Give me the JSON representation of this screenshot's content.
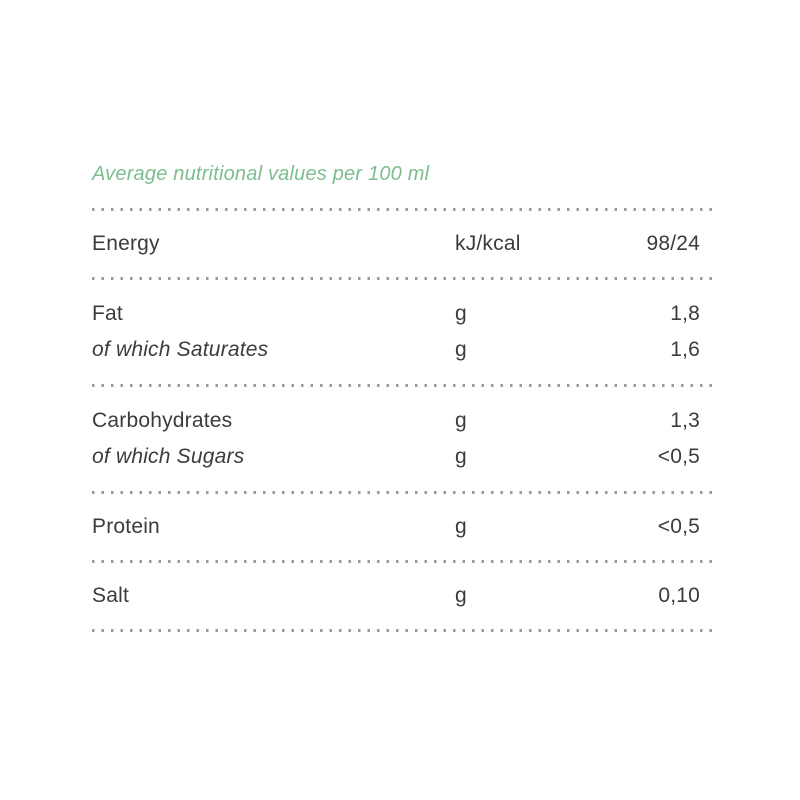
{
  "title": "Average nutritional values per 100 ml",
  "table": {
    "groups": [
      {
        "rows": [
          {
            "label": "Energy",
            "style": "regular",
            "unit": "kJ/kcal",
            "value": "98/24"
          }
        ]
      },
      {
        "rows": [
          {
            "label": "Fat",
            "style": "regular",
            "unit": "g",
            "value": "1,8"
          },
          {
            "label": "of which Saturates",
            "style": "italic",
            "unit": "g",
            "value": "1,6"
          }
        ]
      },
      {
        "rows": [
          {
            "label": "Carbohydrates",
            "style": "regular",
            "unit": "g",
            "value": "1,3"
          },
          {
            "label": "of which Sugars",
            "style": "italic",
            "unit": "g",
            "value": "<0,5"
          }
        ]
      },
      {
        "rows": [
          {
            "label": "Protein",
            "style": "regular",
            "unit": "g",
            "value": "<0,5"
          }
        ]
      },
      {
        "rows": [
          {
            "label": "Salt",
            "style": "regular",
            "unit": "g",
            "value": "0,10"
          }
        ]
      }
    ]
  },
  "colors": {
    "accent_green": "#7dbe90",
    "text": "#3b3b40",
    "dots": "#9a989b"
  }
}
